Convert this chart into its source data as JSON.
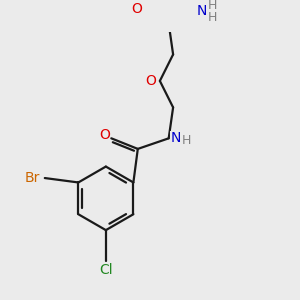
{
  "bg_color": "#ebebeb",
  "bond_color": "#1a1a1a",
  "atom_colors": {
    "O": "#e00000",
    "N": "#0000cc",
    "Br": "#cc6600",
    "Cl": "#228822",
    "H": "#808080"
  },
  "figsize": [
    3.0,
    3.0
  ],
  "dpi": 100,
  "lw": 1.6,
  "fs": 10
}
